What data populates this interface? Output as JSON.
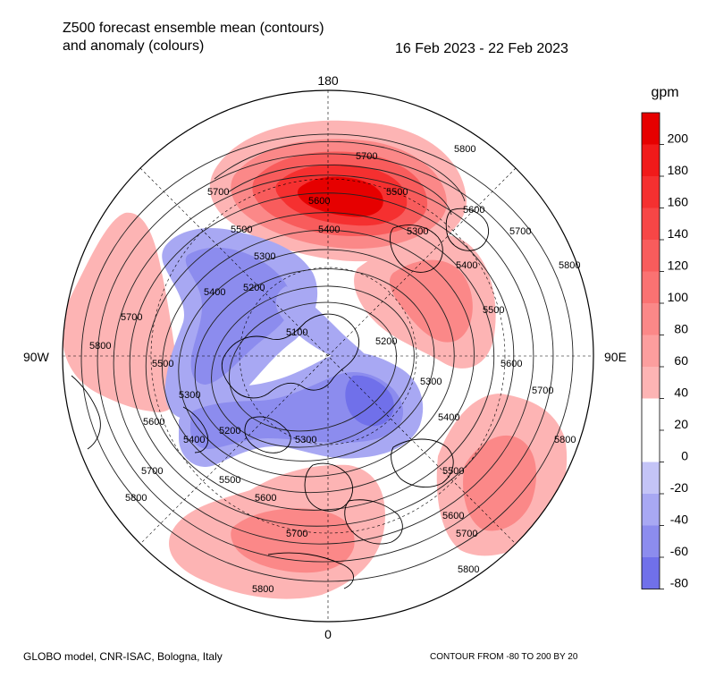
{
  "title": {
    "line1": "Z500 forecast ensemble mean (contours)",
    "line2": "and anomaly (colours)"
  },
  "date_range": "16 Feb 2023 - 22 Feb 2023",
  "map": {
    "projection": "north-polar-stereographic",
    "longitude_labels": {
      "top": "180",
      "bottom": "0",
      "left": "90W",
      "right": "90E"
    },
    "anomaly_fields": [
      {
        "name": "north-pacific-high",
        "anomaly": 180
      },
      {
        "name": "eastern-pacific-high",
        "anomaly": 80
      },
      {
        "name": "north-america-west-high",
        "anomaly": 60
      },
      {
        "name": "atlantic-europe-high",
        "anomaly": 80
      },
      {
        "name": "asia-high",
        "anomaly": 60
      },
      {
        "name": "canada-arctic-low",
        "anomaly": -60
      },
      {
        "name": "siberia-low",
        "anomaly": -80
      }
    ],
    "contour_labels": [
      "5800",
      "5700",
      "5600",
      "5500",
      "5400",
      "5300",
      "5200",
      "5100"
    ]
  },
  "colorbar": {
    "unit": "gpm",
    "ticks": [
      "200",
      "180",
      "160",
      "140",
      "120",
      "100",
      "80",
      "60",
      "40",
      "20",
      "0",
      "-20",
      "-40",
      "-60",
      "-80"
    ],
    "colors": [
      "#e60000",
      "#f11a1a",
      "#f53030",
      "#f74646",
      "#f85c5c",
      "#fa7272",
      "#fb8888",
      "#fc9e9e",
      "#fdb4b4",
      "#ffffff",
      "#ffffff",
      "#c4c4f7",
      "#a8a8f3",
      "#8c8cee",
      "#7070ea"
    ]
  },
  "footer": {
    "credit": "GLOBO model, CNR-ISAC, Bologna, Italy",
    "contour_info": "CONTOUR FROM -80 TO 200 BY 20"
  }
}
